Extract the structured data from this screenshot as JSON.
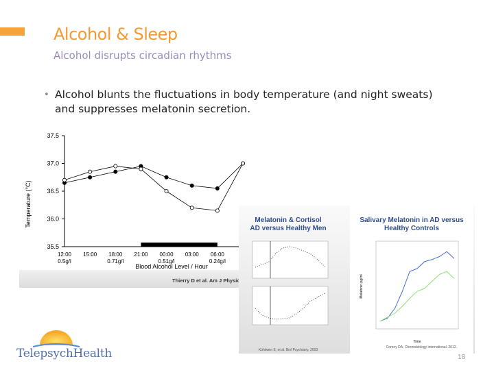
{
  "slide": {
    "title": "Alcohol & Sleep",
    "subtitle": "Alcohol disrupts circadian rhythms",
    "bullet": "Alcohol blunts the fluctuations in body temperature (and night sweats) and suppresses melatonin secretion.",
    "page_number": "18",
    "logo_text": "TelepsychHealth",
    "colors": {
      "accent": "#f39a35",
      "subtitle": "#9b8bbd",
      "logo": "#5470a8"
    }
  },
  "chart_data": [
    {
      "type": "line",
      "ylabel": "Temperature (°C)",
      "xlabel": "Blood Alcohol Level / Hour",
      "yticks": [
        "37.5",
        "37.0",
        "36.5",
        "36.0",
        "35.5"
      ],
      "ylim": [
        35.5,
        37.5
      ],
      "xticks_time": [
        "12:00",
        "15:00",
        "18:00",
        "21:00",
        "00:00",
        "03:00",
        "06:00"
      ],
      "xticks_bal": [
        "0.5g/l",
        "0.71g/l",
        "0.51g/l",
        "0.24g/l"
      ],
      "citation": "Thierry D et al. Am J Physiol",
      "x": [
        12,
        15,
        18,
        21,
        24,
        27,
        30,
        33
      ],
      "series": [
        {
          "values": [
            36.65,
            36.75,
            36.85,
            36.95,
            36.75,
            36.6,
            36.55,
            37.0
          ]
        },
        {
          "values": [
            36.7,
            36.85,
            36.95,
            36.9,
            36.5,
            36.2,
            36.15,
            37.0
          ]
        }
      ]
    },
    {
      "type": "scatter",
      "title_lines": [
        "Melatonin & Cortisol",
        "AD versus Healthy Men"
      ],
      "citation": "Kühlwein E, et al. Biol Psychiatry. 2003"
    },
    {
      "type": "line",
      "title_lines": [
        "Salivary Melatonin in AD versus",
        "Healthy Controls"
      ],
      "ylabel": "Melatonin pg/ml",
      "xlabel": "Time",
      "citation": "Conroy DA, Chronobiology international. 2012.",
      "series": [
        {
          "values": [
            5,
            8,
            18,
            35,
            55,
            58,
            65,
            67,
            70,
            75,
            68
          ]
        },
        {
          "values": [
            5,
            9,
            13,
            20,
            28,
            35,
            38,
            45,
            52,
            55,
            48
          ]
        }
      ]
    }
  ]
}
